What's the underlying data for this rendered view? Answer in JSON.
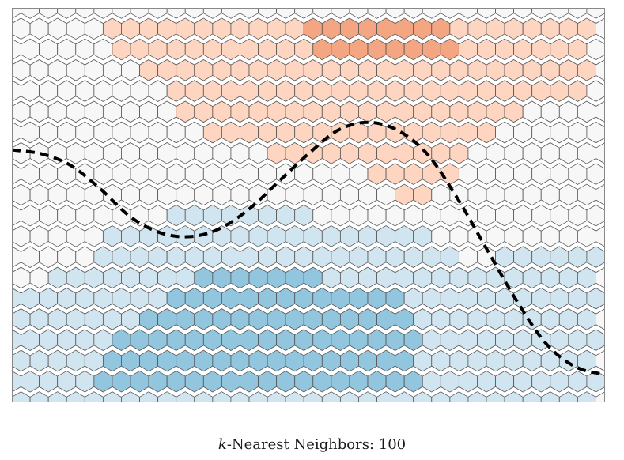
{
  "caption": {
    "k_symbol": "k",
    "label_rest": "-Nearest Neighbors: 100"
  },
  "chart_data": {
    "type": "heatmap",
    "layout": "hexbin",
    "title": "k-Nearest Neighbors: 100",
    "xlabel": "",
    "ylabel": "",
    "axes_visible": false,
    "grid": false,
    "legend": "none",
    "k_neighbors": 100,
    "xlim": [
      0,
      1
    ],
    "ylim": [
      0,
      1
    ],
    "hex_columns": 33,
    "hex_rows": 20,
    "class_levels": [
      -2,
      -1,
      0,
      1,
      2
    ],
    "colors": {
      "-2": "#f4a582",
      "-1": "#fdd5c0",
      "0": "#f7f7f7",
      "1": "#d1e5f0",
      "2": "#92c5de"
    },
    "regions": [
      {
        "class": -2,
        "points": [
          [
            0.5,
            0.98
          ],
          [
            0.75,
            0.98
          ],
          [
            0.75,
            0.86
          ],
          [
            0.62,
            0.85
          ],
          [
            0.5,
            0.9
          ]
        ]
      },
      {
        "class": -1,
        "points": [
          [
            0.13,
            1.0
          ],
          [
            0.98,
            1.0
          ],
          [
            0.98,
            0.78
          ],
          [
            0.86,
            0.74
          ],
          [
            0.78,
            0.66
          ],
          [
            0.73,
            0.56
          ],
          [
            0.7,
            0.45
          ],
          [
            0.6,
            0.58
          ],
          [
            0.5,
            0.62
          ],
          [
            0.4,
            0.64
          ],
          [
            0.3,
            0.7
          ],
          [
            0.26,
            0.82
          ],
          [
            0.18,
            0.88
          ]
        ]
      },
      {
        "class": 1,
        "points": [
          [
            0.0,
            0.0
          ],
          [
            1.0,
            0.0
          ],
          [
            1.0,
            0.38
          ],
          [
            0.88,
            0.38
          ],
          [
            0.75,
            0.35
          ],
          [
            0.7,
            0.46
          ],
          [
            0.6,
            0.45
          ],
          [
            0.52,
            0.47
          ],
          [
            0.46,
            0.52
          ],
          [
            0.36,
            0.52
          ],
          [
            0.28,
            0.48
          ],
          [
            0.18,
            0.44
          ],
          [
            0.12,
            0.34
          ],
          [
            0.0,
            0.28
          ]
        ]
      },
      {
        "class": 2,
        "points": [
          [
            0.15,
            0.01
          ],
          [
            0.71,
            0.01
          ],
          [
            0.68,
            0.14
          ],
          [
            0.66,
            0.26
          ],
          [
            0.62,
            0.31
          ],
          [
            0.55,
            0.3
          ],
          [
            0.5,
            0.33
          ],
          [
            0.43,
            0.33
          ],
          [
            0.36,
            0.33
          ],
          [
            0.3,
            0.31
          ],
          [
            0.24,
            0.24
          ],
          [
            0.18,
            0.18
          ],
          [
            0.13,
            0.08
          ]
        ]
      }
    ],
    "decision_boundary": [
      [
        0.0,
        0.64
      ],
      [
        0.05,
        0.63
      ],
      [
        0.1,
        0.6
      ],
      [
        0.15,
        0.54
      ],
      [
        0.2,
        0.47
      ],
      [
        0.25,
        0.43
      ],
      [
        0.3,
        0.42
      ],
      [
        0.35,
        0.44
      ],
      [
        0.4,
        0.49
      ],
      [
        0.45,
        0.56
      ],
      [
        0.5,
        0.63
      ],
      [
        0.55,
        0.69
      ],
      [
        0.6,
        0.71
      ],
      [
        0.65,
        0.69
      ],
      [
        0.7,
        0.63
      ],
      [
        0.75,
        0.52
      ],
      [
        0.8,
        0.39
      ],
      [
        0.85,
        0.26
      ],
      [
        0.9,
        0.15
      ],
      [
        0.95,
        0.09
      ],
      [
        1.0,
        0.07
      ]
    ],
    "boundary_style": {
      "stroke": "#000000",
      "dash": "dashed"
    },
    "hex_edge_color": "#555555"
  }
}
